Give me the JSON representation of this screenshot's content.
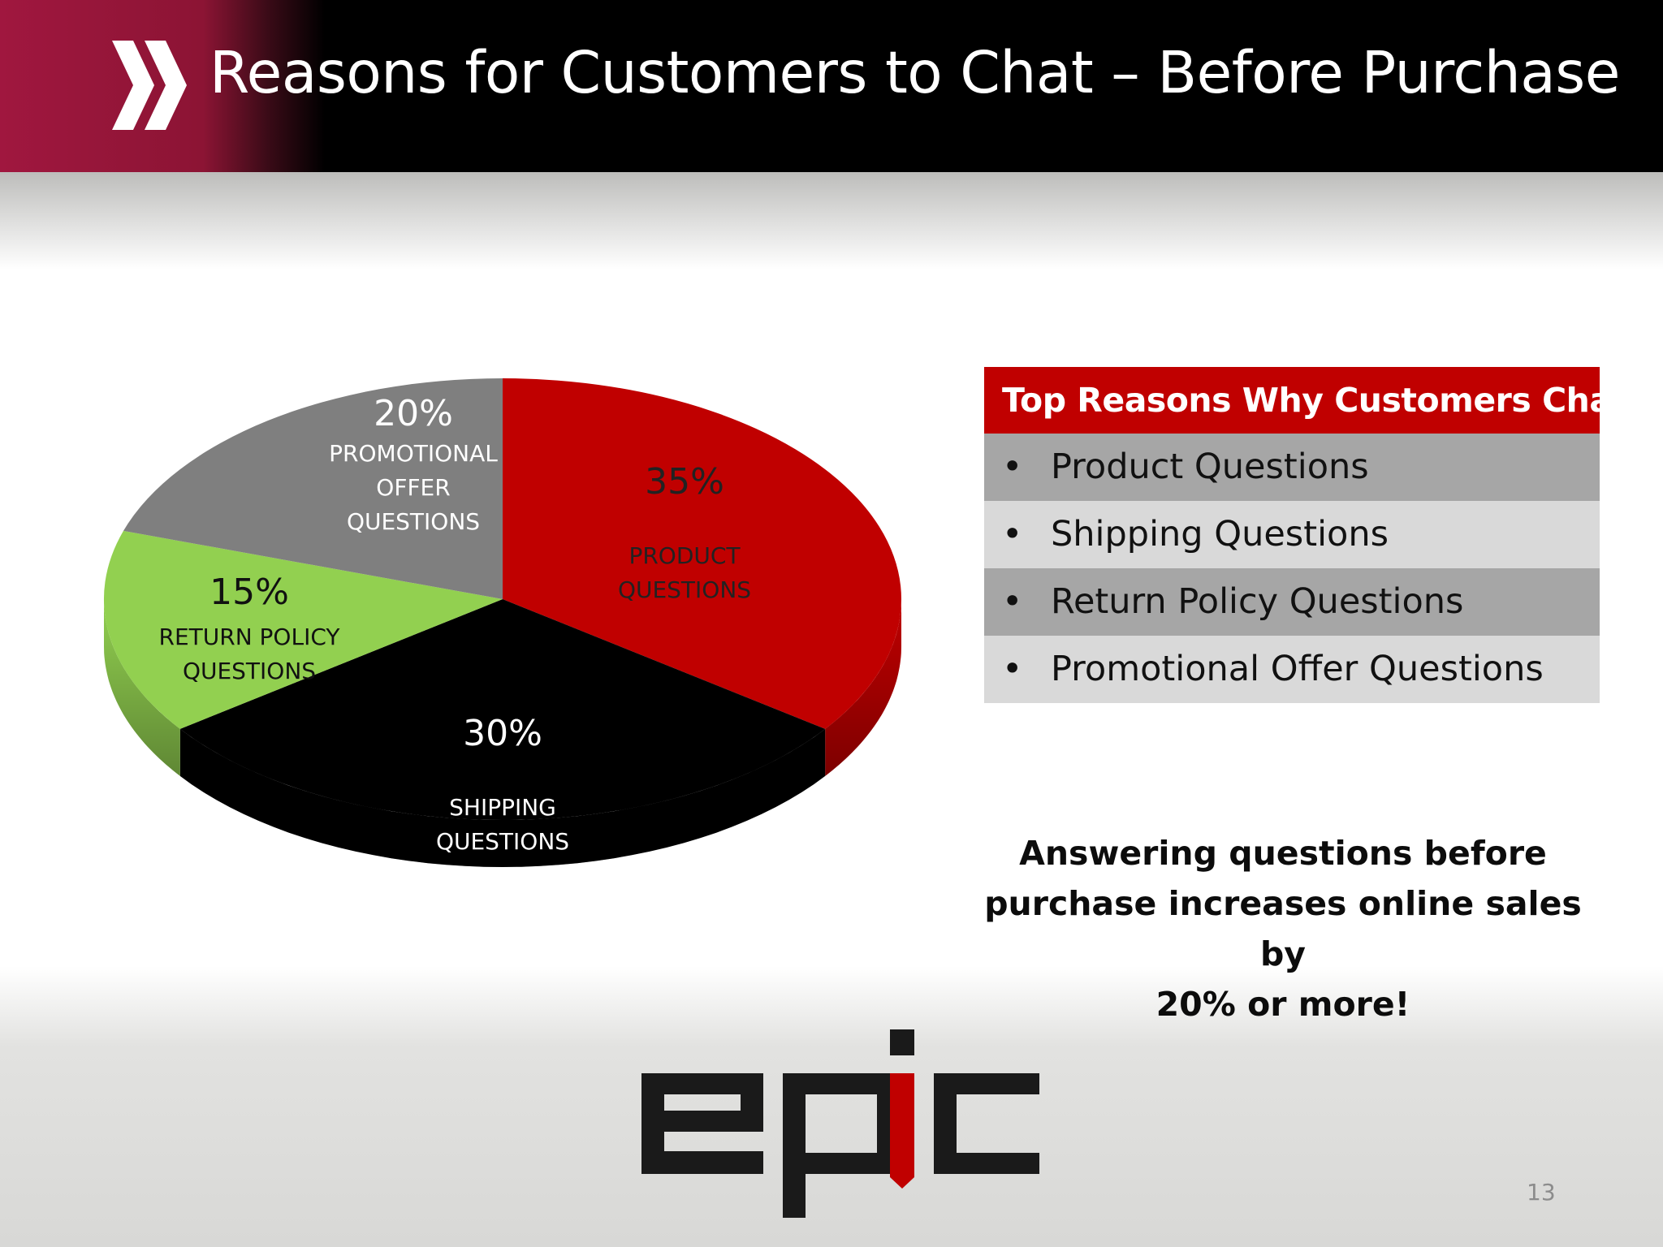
{
  "slide": {
    "title": "Reasons for Customers to Chat – Before Purchase",
    "page_number": "13",
    "logo_text": "epic"
  },
  "chart_data": {
    "type": "pie",
    "title": "",
    "slices": [
      {
        "label_line1": "PRODUCT",
        "label_line2": "QUESTIONS",
        "label_line3": "",
        "value": 35,
        "value_label": "35%",
        "color": "#c00000",
        "text_color": "#222222"
      },
      {
        "label_line1": "SHIPPING",
        "label_line2": "QUESTIONS",
        "label_line3": "",
        "value": 30,
        "value_label": "30%",
        "color": "#000000",
        "text_color": "#ffffff"
      },
      {
        "label_line1": "RETURN POLICY",
        "label_line2": "QUESTIONS",
        "label_line3": "",
        "value": 15,
        "value_label": "15%",
        "color": "#92d050",
        "text_color": "#111111"
      },
      {
        "label_line1": "PROMOTIONAL",
        "label_line2": "OFFER",
        "label_line3": "QUESTIONS",
        "value": 20,
        "value_label": "20%",
        "color": "#7f7f7f",
        "text_color": "#ffffff"
      }
    ]
  },
  "table": {
    "header": "Top Reasons Why Customers Chat",
    "bullet": "•",
    "rows": [
      "Product Questions",
      "Shipping Questions",
      "Return Policy Questions",
      "Promotional Offer Questions"
    ]
  },
  "callout": {
    "line1": "Answering questions before",
    "line2": "purchase increases online sales by",
    "line3": "20% or more!"
  },
  "colors": {
    "brand_red": "#c00000",
    "header_maroon": "#a0173f",
    "row_dark": "#a6a6a6",
    "row_light": "#d9d9d9"
  }
}
